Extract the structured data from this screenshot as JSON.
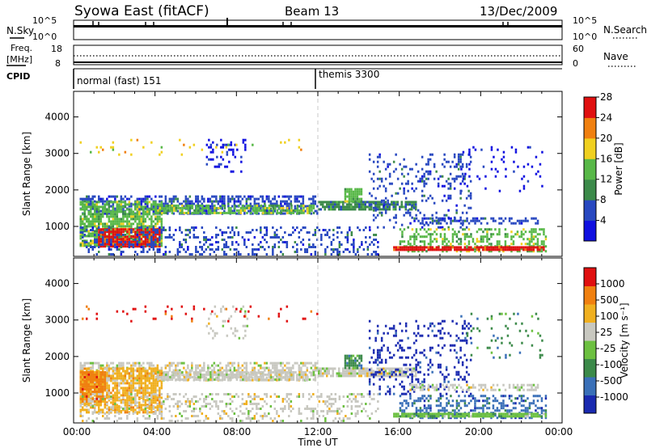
{
  "header": {
    "station": "Syowa East (fitACF)",
    "beam": "Beam 13",
    "date": "13/Dec/2009"
  },
  "top_panels": {
    "nsky_label": "N.Sky",
    "nsky_ticks": [
      "10^5",
      "10^0"
    ],
    "nsearch_label": "N.Search",
    "nsearch_ticks": [
      "10^5",
      "10^0"
    ],
    "freq_label_line1": "Freq.",
    "freq_label_line2": "[MHz]",
    "freq_ticks": [
      "18",
      "8"
    ],
    "nave_label": "Nave",
    "nave_ticks": [
      "60",
      "0"
    ],
    "cpid_label": "CPID",
    "cpid_segments": [
      {
        "name": "normal (fast) 151",
        "start_hour": 0,
        "end_hour": 12
      },
      {
        "name": "themis 3300",
        "start_hour": 12,
        "end_hour": 24
      }
    ]
  },
  "chart_data": [
    {
      "type": "heatmap",
      "name": "power-panel",
      "ylabel": "Slant Range [km]",
      "yticks": [
        1000,
        2000,
        3000,
        4000
      ],
      "ylim": [
        180,
        4700
      ],
      "xlim": [
        0,
        24
      ],
      "colorbar": {
        "label": "Power [dB]",
        "ticks": [
          "4",
          "8",
          "12",
          "16",
          "20",
          "24",
          "28"
        ],
        "colors": [
          "#1010e0",
          "#2848c0",
          "#3c8a4a",
          "#58b848",
          "#f0d020",
          "#f08010",
          "#e01010"
        ]
      },
      "regions": [
        {
          "x0": 0.3,
          "x1": 12.0,
          "y0": 1350,
          "y1": 1850,
          "density": 0.55,
          "level": 1
        },
        {
          "x0": 0.3,
          "x1": 4.3,
          "y0": 500,
          "y1": 1700,
          "density": 0.75,
          "level": 3
        },
        {
          "x0": 1.2,
          "x1": 4.2,
          "y0": 450,
          "y1": 950,
          "density": 0.85,
          "level": 6
        },
        {
          "x0": 0.3,
          "x1": 15.0,
          "y0": 250,
          "y1": 1000,
          "density": 0.25,
          "level": 1
        },
        {
          "x0": 4.0,
          "x1": 11.8,
          "y0": 1380,
          "y1": 1600,
          "density": 0.7,
          "level": 3
        },
        {
          "x0": 6.5,
          "x1": 8.5,
          "y0": 2500,
          "y1": 3400,
          "density": 0.2,
          "level": 0
        },
        {
          "x0": 12.0,
          "x1": 16.8,
          "y0": 1450,
          "y1": 1700,
          "density": 0.8,
          "level": 2
        },
        {
          "x0": 13.3,
          "x1": 14.1,
          "y0": 1700,
          "y1": 2050,
          "density": 0.9,
          "level": 3
        },
        {
          "x0": 14.5,
          "x1": 19.5,
          "y0": 1000,
          "y1": 3000,
          "density": 0.18,
          "level": 1
        },
        {
          "x0": 16.5,
          "x1": 22.8,
          "y0": 1080,
          "y1": 1250,
          "density": 0.5,
          "level": 1
        },
        {
          "x0": 16.0,
          "x1": 23.2,
          "y0": 300,
          "y1": 950,
          "density": 0.4,
          "level": 3
        },
        {
          "x0": 15.7,
          "x1": 23.2,
          "y0": 330,
          "y1": 460,
          "density": 0.9,
          "level": 6
        },
        {
          "x0": 19.0,
          "x1": 23.0,
          "y0": 2000,
          "y1": 3200,
          "density": 0.08,
          "level": 0
        },
        {
          "x0": 0.3,
          "x1": 12.0,
          "y0": 3000,
          "y1": 3400,
          "density": 0.04,
          "level": 4
        }
      ]
    },
    {
      "type": "heatmap",
      "name": "velocity-panel",
      "ylabel": "Slant Range [km]",
      "yticks": [
        1000,
        2000,
        3000,
        4000
      ],
      "ylim": [
        180,
        4700
      ],
      "xlim": [
        0,
        24
      ],
      "xticks": [
        "00:00",
        "04:00",
        "08:00",
        "12:00",
        "16:00",
        "20:00",
        "00:00"
      ],
      "xlabel": "Time UT",
      "colorbar": {
        "label": "Velocity [m s⁻¹]",
        "ticks": [
          "1000",
          "500",
          "100",
          "25",
          "-25",
          "-100",
          "-500",
          "-1000"
        ],
        "colors": [
          "#1a2ab0",
          "#3a70b8",
          "#3c8a4a",
          "#6cc040",
          "#c8c8c0",
          "#f0b020",
          "#f08010",
          "#e01010"
        ]
      },
      "regions": [
        {
          "x0": 0.3,
          "x1": 12.0,
          "y0": 1350,
          "y1": 1850,
          "density": 0.55,
          "level": 4
        },
        {
          "x0": 0.3,
          "x1": 4.3,
          "y0": 500,
          "y1": 1700,
          "density": 0.75,
          "level": 5
        },
        {
          "x0": 0.3,
          "x1": 1.5,
          "y0": 800,
          "y1": 1600,
          "density": 0.9,
          "level": 6
        },
        {
          "x0": 0.3,
          "x1": 15.0,
          "y0": 250,
          "y1": 1000,
          "density": 0.25,
          "level": 4
        },
        {
          "x0": 4.0,
          "x1": 11.8,
          "y0": 1380,
          "y1": 1600,
          "density": 0.7,
          "level": 4
        },
        {
          "x0": 6.5,
          "x1": 8.5,
          "y0": 2500,
          "y1": 3400,
          "density": 0.2,
          "level": 4
        },
        {
          "x0": 12.0,
          "x1": 16.8,
          "y0": 1450,
          "y1": 1700,
          "density": 0.8,
          "level": 4
        },
        {
          "x0": 13.3,
          "x1": 14.1,
          "y0": 1700,
          "y1": 2050,
          "density": 0.9,
          "level": 2
        },
        {
          "x0": 14.5,
          "x1": 19.5,
          "y0": 1000,
          "y1": 3000,
          "density": 0.18,
          "level": 0
        },
        {
          "x0": 16.5,
          "x1": 22.8,
          "y0": 1080,
          "y1": 1250,
          "density": 0.5,
          "level": 4
        },
        {
          "x0": 16.0,
          "x1": 23.2,
          "y0": 300,
          "y1": 950,
          "density": 0.4,
          "level": 1
        },
        {
          "x0": 15.7,
          "x1": 23.2,
          "y0": 330,
          "y1": 460,
          "density": 0.9,
          "level": 3
        },
        {
          "x0": 19.0,
          "x1": 23.0,
          "y0": 2000,
          "y1": 3200,
          "density": 0.08,
          "level": 2
        },
        {
          "x0": 0.3,
          "x1": 12.0,
          "y0": 3000,
          "y1": 3400,
          "density": 0.04,
          "level": 7
        }
      ]
    }
  ]
}
